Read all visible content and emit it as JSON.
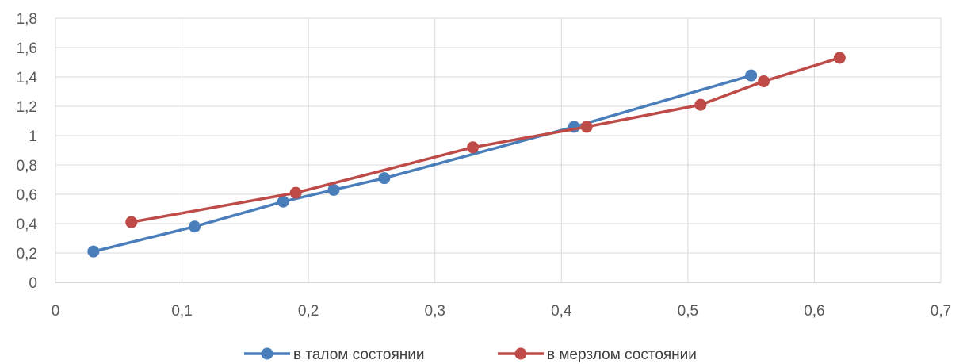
{
  "chart_data": {
    "type": "line",
    "title": "",
    "xlabel": "",
    "ylabel": "",
    "xlim": [
      0,
      0.7
    ],
    "ylim": [
      0,
      1.8
    ],
    "x_ticks": [
      "0",
      "0,1",
      "0,2",
      "0,3",
      "0,4",
      "0,5",
      "0,6",
      "0,7"
    ],
    "y_ticks": [
      "0",
      "0,2",
      "0,4",
      "0,6",
      "0,8",
      "1",
      "1,2",
      "1,4",
      "1,6",
      "1,8"
    ],
    "grid": true,
    "legend_position": "bottom",
    "series": [
      {
        "name": "в талом состоянии",
        "color": "#4a7ebb",
        "x": [
          0.03,
          0.11,
          0.18,
          0.22,
          0.26,
          0.41,
          0.55
        ],
        "y": [
          0.21,
          0.38,
          0.55,
          0.63,
          0.71,
          1.06,
          1.41
        ]
      },
      {
        "name": "в мерзлом состоянии",
        "color": "#be4b48",
        "x": [
          0.06,
          0.19,
          0.33,
          0.42,
          0.51,
          0.56,
          0.62
        ],
        "y": [
          0.41,
          0.61,
          0.92,
          1.06,
          1.21,
          1.37,
          1.53
        ]
      }
    ]
  }
}
